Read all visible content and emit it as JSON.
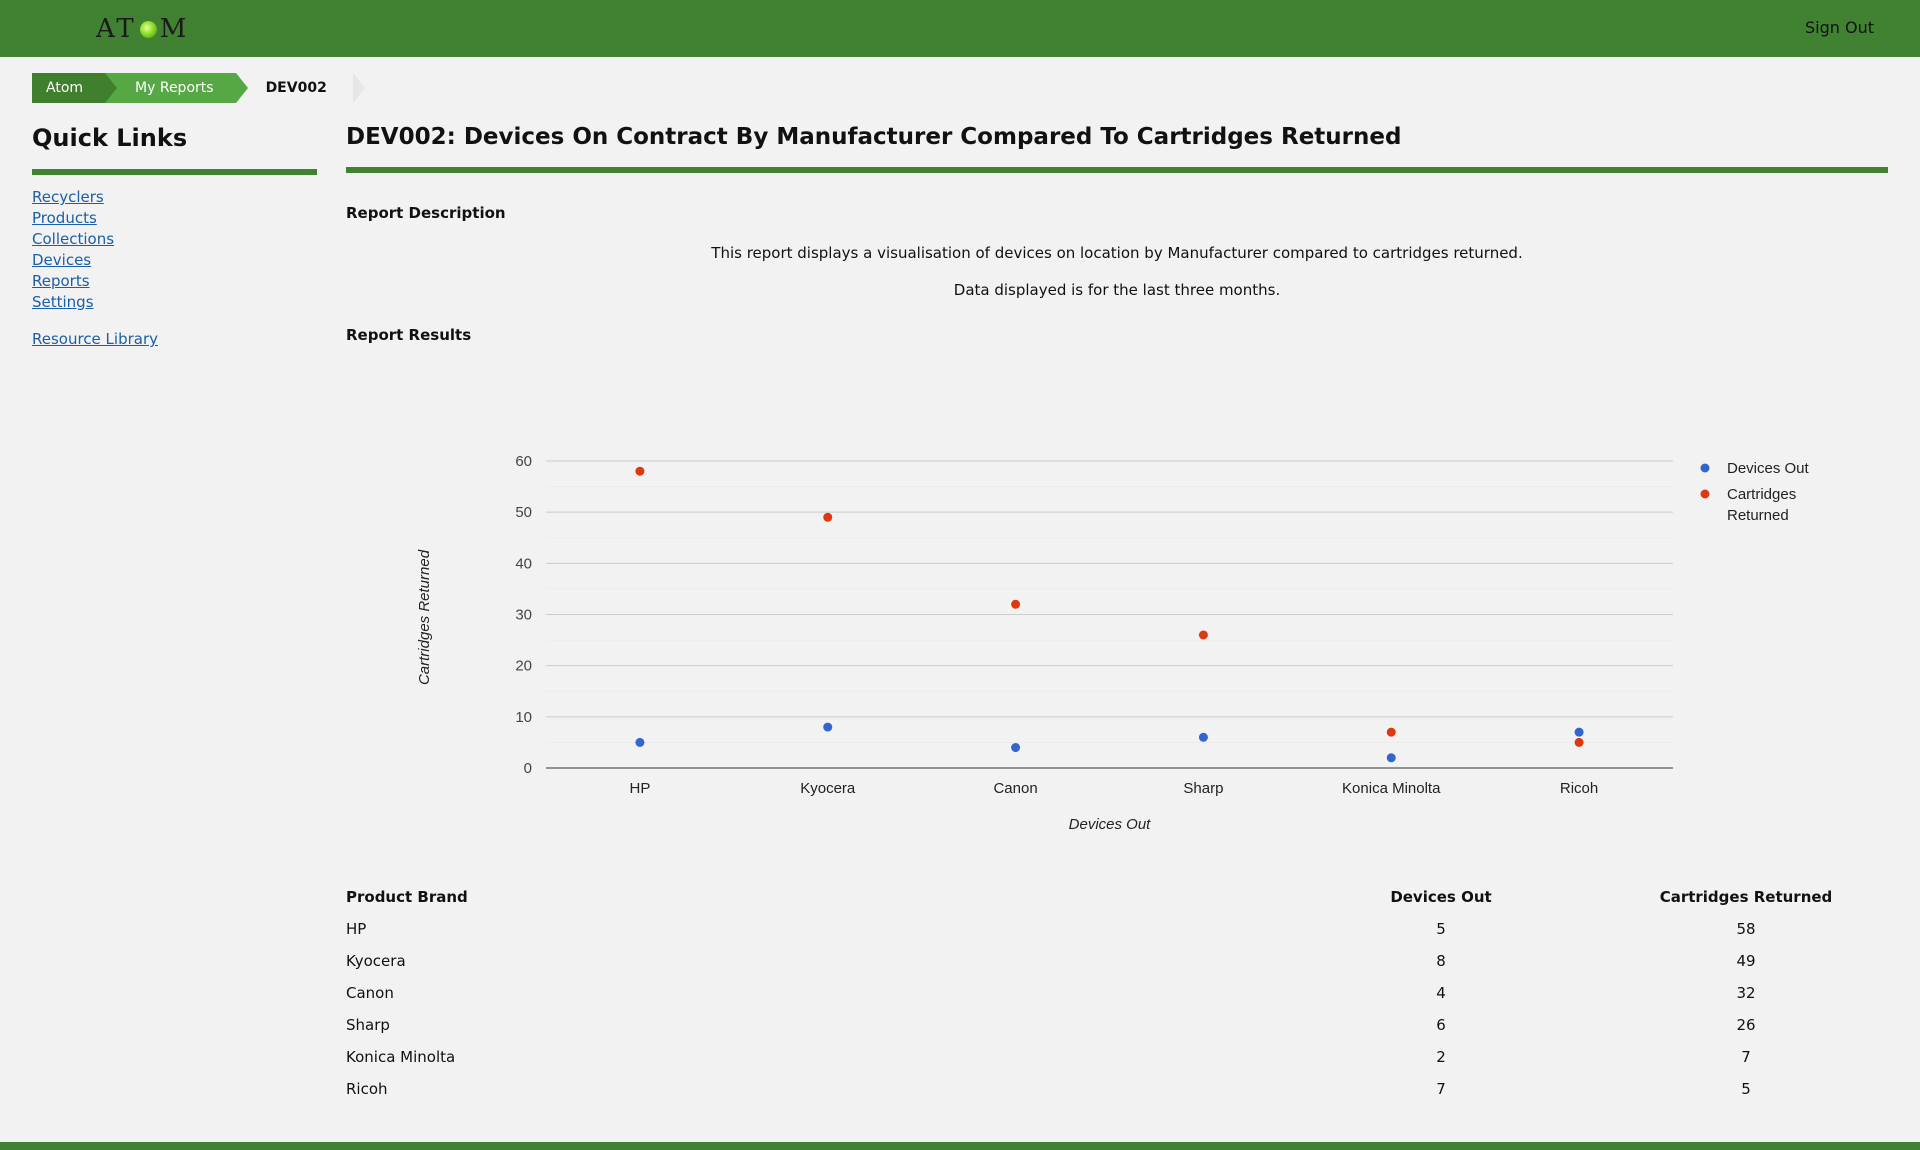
{
  "header": {
    "logo_left": "AT",
    "logo_right": "M",
    "sign_out": "Sign Out",
    "colors": {
      "brand_green": "#418132"
    }
  },
  "breadcrumb": [
    "Atom",
    "My Reports",
    "DEV002"
  ],
  "sidebar": {
    "title": "Quick Links",
    "links": [
      "Recyclers",
      "Products",
      "Collections",
      "Devices",
      "Reports",
      "Settings"
    ],
    "extra_link": "Resource Library"
  },
  "main": {
    "title": "DEV002: Devices On Contract By Manufacturer Compared To Cartridges Returned",
    "description_heading": "Report Description",
    "description_lines": [
      "This report displays a visualisation of devices on location by Manufacturer compared to cartridges returned.",
      "Data displayed is for the last three months."
    ],
    "results_heading": "Report Results"
  },
  "chart_data": {
    "type": "scatter",
    "categories": [
      "HP",
      "Kyocera",
      "Canon",
      "Sharp",
      "Konica Minolta",
      "Ricoh"
    ],
    "series": [
      {
        "name": "Devices Out",
        "values": [
          5,
          8,
          4,
          6,
          2,
          7
        ],
        "color": "#3366cc"
      },
      {
        "name": "Cartridges Returned",
        "values": [
          58,
          49,
          32,
          26,
          7,
          5
        ],
        "color": "#dc3912"
      }
    ],
    "xlabel": "Devices Out",
    "ylabel": "Cartridges Returned",
    "ylim": [
      0,
      60
    ],
    "yticks": [
      0,
      10,
      20,
      30,
      40,
      50,
      60
    ],
    "grid": true,
    "legend": "right"
  },
  "table": {
    "headers": [
      "Product Brand",
      "Devices Out",
      "Cartridges Returned"
    ],
    "rows": [
      [
        "HP",
        "5",
        "58"
      ],
      [
        "Kyocera",
        "8",
        "49"
      ],
      [
        "Canon",
        "4",
        "32"
      ],
      [
        "Sharp",
        "6",
        "26"
      ],
      [
        "Konica Minolta",
        "2",
        "7"
      ],
      [
        "Ricoh",
        "7",
        "5"
      ]
    ]
  }
}
